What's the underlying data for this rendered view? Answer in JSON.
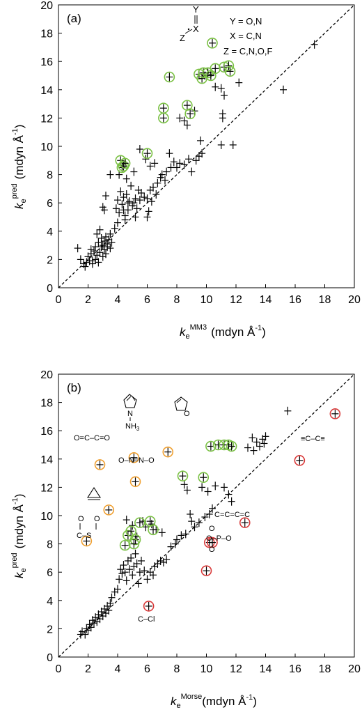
{
  "chart_data": [
    {
      "type": "scatter",
      "panel_label": "(a)",
      "xlabel_main": "k",
      "xlabel_sub": "e",
      "xlabel_sup": "MM3",
      "xlabel_unit": "(mdyn Å",
      "ylabel_main": "k",
      "ylabel_sub": "e",
      "ylabel_sup": "pred",
      "ylabel_unit": "(mdyn Å",
      "unit_exp": "-1",
      "unit_close": ")",
      "xlim": [
        0,
        20
      ],
      "ylim": [
        0,
        20
      ],
      "xticks": [
        "0",
        "2",
        "4",
        "6",
        "8",
        "10",
        "12",
        "14",
        "16",
        "18",
        "20"
      ],
      "yticks": [
        "0",
        "2",
        "4",
        "6",
        "8",
        "10",
        "12",
        "14",
        "16",
        "18",
        "20"
      ],
      "diagonal": true,
      "legend_lines": [
        "Y = O,N",
        "X = C,N",
        "Z = C,N,O,F"
      ],
      "structure_labels": [
        "Y",
        "X",
        "Z"
      ],
      "plus_points": [
        [
          1.3,
          2.8
        ],
        [
          1.5,
          2.0
        ],
        [
          1.7,
          1.7
        ],
        [
          1.8,
          1.5
        ],
        [
          1.9,
          1.8
        ],
        [
          2.0,
          2.2
        ],
        [
          2.1,
          1.9
        ],
        [
          2.2,
          2.4
        ],
        [
          2.3,
          1.7
        ],
        [
          2.4,
          2.6
        ],
        [
          2.5,
          2.0
        ],
        [
          2.5,
          2.9
        ],
        [
          2.6,
          2.3
        ],
        [
          2.7,
          1.8
        ],
        [
          2.7,
          3.2
        ],
        [
          2.8,
          2.5
        ],
        [
          2.8,
          4.1
        ],
        [
          2.9,
          2.9
        ],
        [
          2.9,
          3.5
        ],
        [
          3.0,
          2.2
        ],
        [
          3.0,
          3.0
        ],
        [
          3.1,
          2.7
        ],
        [
          3.1,
          3.3
        ],
        [
          3.2,
          3.6
        ],
        [
          3.2,
          2.4
        ],
        [
          3.3,
          3.1
        ],
        [
          3.3,
          2.9
        ],
        [
          3.4,
          3.4
        ],
        [
          3.5,
          2.8
        ],
        [
          2.6,
          3.8
        ],
        [
          3.0,
          5.7
        ],
        [
          3.1,
          5.5
        ],
        [
          3.2,
          6.5
        ],
        [
          2.3,
          1.9
        ],
        [
          2.2,
          2.7
        ],
        [
          3.6,
          3.2
        ],
        [
          3.5,
          3.8
        ],
        [
          3.8,
          4.2
        ],
        [
          3.9,
          5.6
        ],
        [
          4.0,
          6.2
        ],
        [
          4.1,
          5.3
        ],
        [
          4.2,
          6.8
        ],
        [
          4.3,
          5.9
        ],
        [
          4.4,
          6.4
        ],
        [
          4.5,
          5.1
        ],
        [
          4.6,
          6.6
        ],
        [
          4.7,
          5.5
        ],
        [
          4.5,
          4.8
        ],
        [
          4.8,
          6.1
        ],
        [
          4.9,
          7.2
        ],
        [
          5.0,
          5.8
        ],
        [
          5.1,
          6.0
        ],
        [
          5.2,
          6.3
        ],
        [
          5.3,
          5.6
        ],
        [
          5.4,
          6.9
        ],
        [
          5.5,
          6.2
        ],
        [
          5.6,
          6.7
        ],
        [
          5.8,
          6.4
        ],
        [
          6.0,
          6.3
        ],
        [
          6.1,
          5.4
        ],
        [
          6.3,
          6.1
        ],
        [
          6.2,
          6.9
        ],
        [
          6.4,
          7.1
        ],
        [
          6.6,
          6.6
        ],
        [
          6.7,
          7.4
        ],
        [
          6.9,
          7.8
        ],
        [
          7.0,
          8.0
        ],
        [
          7.2,
          7.6
        ],
        [
          7.3,
          8.2
        ],
        [
          7.5,
          9.5
        ],
        [
          7.6,
          8.5
        ],
        [
          7.8,
          8.9
        ],
        [
          8.0,
          8.5
        ],
        [
          8.2,
          8.8
        ],
        [
          8.5,
          8.7
        ],
        [
          8.8,
          9.1
        ],
        [
          9.0,
          8.2
        ],
        [
          9.3,
          9.0
        ],
        [
          9.5,
          9.3
        ],
        [
          9.6,
          10.4
        ],
        [
          9.7,
          9.5
        ],
        [
          8.5,
          11.8
        ],
        [
          8.7,
          11.5
        ],
        [
          8.2,
          12.0
        ],
        [
          9.2,
          12.5
        ],
        [
          4.1,
          8.0
        ],
        [
          4.6,
          7.7
        ],
        [
          5.1,
          8.2
        ],
        [
          5.5,
          9.8
        ],
        [
          5.9,
          9.1
        ],
        [
          6.2,
          8.6
        ],
        [
          6.5,
          8.8
        ],
        [
          3.5,
          8.0
        ],
        [
          4.4,
          5.5
        ],
        [
          4.7,
          6.0
        ],
        [
          5.2,
          5.0
        ],
        [
          6.0,
          5.0
        ],
        [
          4.0,
          4.6
        ],
        [
          10.6,
          14.2
        ],
        [
          11.0,
          14.1
        ],
        [
          11.2,
          13.6
        ],
        [
          11.1,
          12.3
        ],
        [
          11.1,
          12.0
        ],
        [
          11.0,
          10.1
        ],
        [
          11.8,
          10.1
        ],
        [
          12.2,
          14.5
        ],
        [
          15.2,
          14.0
        ],
        [
          17.3,
          17.2
        ],
        [
          9.9,
          15.0
        ],
        [
          10.3,
          15.1
        ]
      ],
      "green_circled": [
        [
          4.2,
          9.0
        ],
        [
          4.3,
          8.5
        ],
        [
          4.4,
          8.6
        ],
        [
          4.5,
          8.8
        ],
        [
          6.0,
          9.5
        ],
        [
          7.1,
          12.0
        ],
        [
          7.1,
          12.7
        ],
        [
          7.5,
          14.9
        ],
        [
          8.7,
          12.9
        ],
        [
          8.9,
          12.3
        ],
        [
          9.5,
          15.1
        ],
        [
          9.7,
          14.8
        ],
        [
          9.8,
          15.2
        ],
        [
          10.1,
          15.2
        ],
        [
          10.3,
          15.0
        ],
        [
          10.6,
          15.5
        ],
        [
          11.2,
          15.6
        ],
        [
          11.5,
          15.7
        ],
        [
          11.6,
          15.3
        ],
        [
          10.4,
          17.3
        ]
      ],
      "orange_circled": [],
      "red_circled": []
    },
    {
      "type": "scatter",
      "panel_label": "(b)",
      "xlabel_main": "k",
      "xlabel_sub": "e",
      "xlabel_sup": "Morse",
      "xlabel_unit": "(mdyn Å",
      "ylabel_main": "k",
      "ylabel_sub": "e",
      "ylabel_sup": "pred",
      "ylabel_unit": "(mdyn Å",
      "unit_exp": "-1",
      "unit_close": ")",
      "xlim": [
        0,
        20
      ],
      "ylim": [
        0,
        20
      ],
      "xticks": [
        "0",
        "2",
        "4",
        "6",
        "8",
        "10",
        "12",
        "14",
        "16",
        "18",
        "20"
      ],
      "yticks": [
        "0",
        "2",
        "4",
        "6",
        "8",
        "10",
        "12",
        "14",
        "16",
        "18",
        "20"
      ],
      "diagonal": true,
      "chem_labels": {
        "nh3": "NH",
        "nh3_sub": "3",
        "n": "N",
        "o_ring": "O",
        "glyoxal": "O=C–C=O",
        "nitro": "O–N=N–O",
        "cs": "C–S",
        "cumulene": "C=C=C=C",
        "phosphate": "O–P–O",
        "phos_o_top": "O",
        "phos_o_bottom": "O",
        "diyne": "≡C–C≡",
        "ccl": "C–Cl",
        "cs_o1": "O",
        "cs_o2": "O"
      },
      "plus_points": [
        [
          1.5,
          1.6
        ],
        [
          1.6,
          1.8
        ],
        [
          1.8,
          1.6
        ],
        [
          1.9,
          2.0
        ],
        [
          2.0,
          1.9
        ],
        [
          2.1,
          2.3
        ],
        [
          2.2,
          2.1
        ],
        [
          2.3,
          2.6
        ],
        [
          2.4,
          2.4
        ],
        [
          2.5,
          2.8
        ],
        [
          2.6,
          2.5
        ],
        [
          2.7,
          3.0
        ],
        [
          2.8,
          2.7
        ],
        [
          2.9,
          3.2
        ],
        [
          3.0,
          2.9
        ],
        [
          3.1,
          3.4
        ],
        [
          3.2,
          3.1
        ],
        [
          3.3,
          3.6
        ],
        [
          3.4,
          3.3
        ],
        [
          3.5,
          3.8
        ],
        [
          3.6,
          4.2
        ],
        [
          3.8,
          4.6
        ],
        [
          4.0,
          4.8
        ],
        [
          4.1,
          5.5
        ],
        [
          4.2,
          6.2
        ],
        [
          4.3,
          5.9
        ],
        [
          4.4,
          6.5
        ],
        [
          4.5,
          6.0
        ],
        [
          4.6,
          5.4
        ],
        [
          4.7,
          6.8
        ],
        [
          4.8,
          6.2
        ],
        [
          4.9,
          7.0
        ],
        [
          5.0,
          5.8
        ],
        [
          5.1,
          6.4
        ],
        [
          5.2,
          7.3
        ],
        [
          5.3,
          6.6
        ],
        [
          5.4,
          5.2
        ],
        [
          5.5,
          6.0
        ],
        [
          5.6,
          6.8
        ],
        [
          5.8,
          6.1
        ],
        [
          6.0,
          5.5
        ],
        [
          6.2,
          6.0
        ],
        [
          6.4,
          5.8
        ],
        [
          6.5,
          6.4
        ],
        [
          6.7,
          6.6
        ],
        [
          6.9,
          6.8
        ],
        [
          7.1,
          6.7
        ],
        [
          7.3,
          6.9
        ],
        [
          7.6,
          7.8
        ],
        [
          8.0,
          8.3
        ],
        [
          8.3,
          8.6
        ],
        [
          8.6,
          8.7
        ],
        [
          8.9,
          10.1
        ],
        [
          9.2,
          9.2
        ],
        [
          9.5,
          9.5
        ],
        [
          9.9,
          9.9
        ],
        [
          10.2,
          10.1
        ],
        [
          5.7,
          9.6
        ],
        [
          5.9,
          9.2
        ],
        [
          6.3,
          9.4
        ],
        [
          6.6,
          9.0
        ],
        [
          7.0,
          8.8
        ],
        [
          5.0,
          9.3
        ],
        [
          5.3,
          8.5
        ],
        [
          4.6,
          9.7
        ],
        [
          8.5,
          12.2
        ],
        [
          8.7,
          11.8
        ],
        [
          9.7,
          12.0
        ],
        [
          10.1,
          11.7
        ],
        [
          10.6,
          12.1
        ],
        [
          11.2,
          12.0
        ],
        [
          11.5,
          11.5
        ],
        [
          11.7,
          11.0
        ],
        [
          13.1,
          15.5
        ],
        [
          13.4,
          15.2
        ],
        [
          13.6,
          14.9
        ],
        [
          13.8,
          15.4
        ],
        [
          13.9,
          15.1
        ],
        [
          14.0,
          15.6
        ],
        [
          15.5,
          17.4
        ],
        [
          12.8,
          14.8
        ],
        [
          13.2,
          14.6
        ],
        [
          7.9,
          8.0
        ],
        [
          9.0,
          9.6
        ],
        [
          10.4,
          10.5
        ]
      ],
      "green_circled": [
        [
          4.5,
          7.9
        ],
        [
          4.7,
          8.6
        ],
        [
          4.9,
          8.9
        ],
        [
          5.2,
          8.3
        ],
        [
          5.5,
          9.5
        ],
        [
          5.1,
          8.0
        ],
        [
          6.2,
          9.6
        ],
        [
          6.4,
          9.0
        ],
        [
          8.4,
          12.8
        ],
        [
          9.8,
          12.7
        ],
        [
          10.3,
          14.9
        ],
        [
          10.8,
          15.0
        ],
        [
          11.2,
          15.0
        ],
        [
          11.5,
          15.0
        ],
        [
          11.7,
          14.9
        ]
      ],
      "orange_circled": [
        [
          1.9,
          8.2
        ],
        [
          3.4,
          10.4
        ],
        [
          5.2,
          12.4
        ],
        [
          5.1,
          14.1
        ],
        [
          7.4,
          14.5
        ],
        [
          2.8,
          13.6
        ]
      ],
      "red_circled": [
        [
          6.1,
          3.6
        ],
        [
          10.2,
          8.1
        ],
        [
          10.4,
          8.1
        ],
        [
          10.0,
          6.1
        ],
        [
          12.6,
          9.5
        ],
        [
          16.3,
          13.9
        ],
        [
          18.7,
          17.2
        ]
      ]
    }
  ]
}
